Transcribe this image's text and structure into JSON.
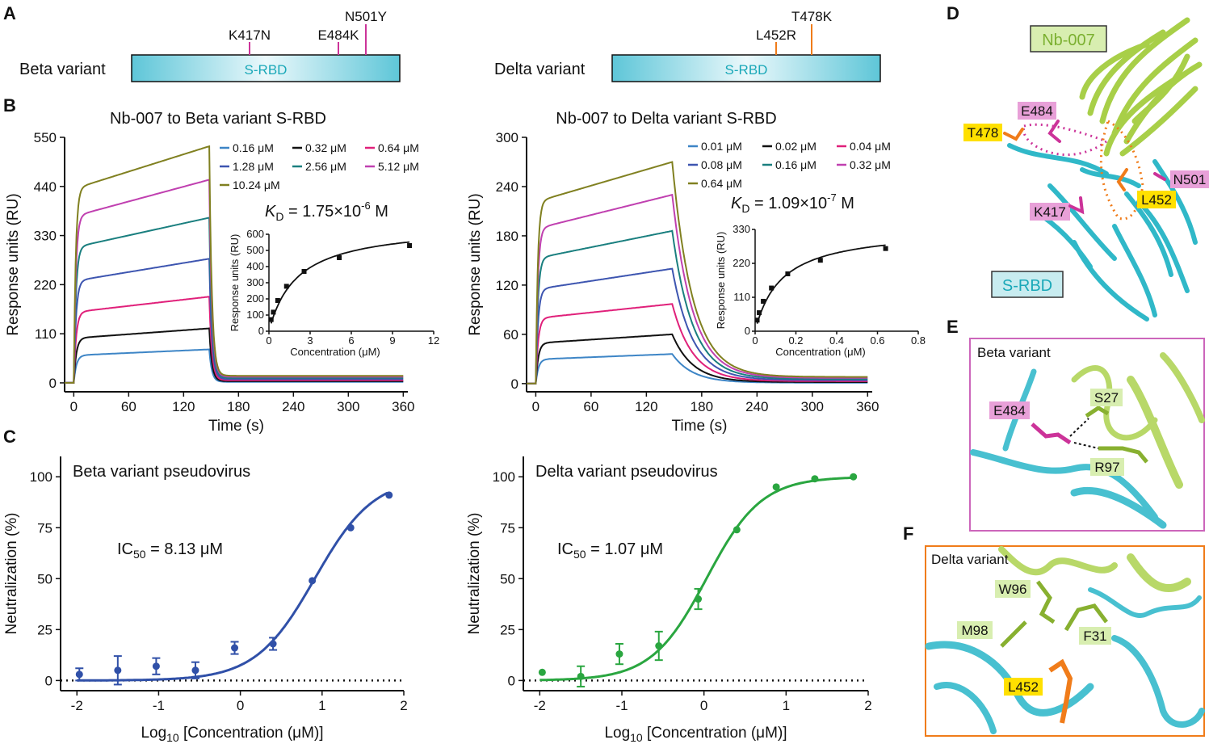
{
  "panel_labels": [
    "A",
    "B",
    "C",
    "D",
    "E",
    "F"
  ],
  "panelA": [
    {
      "name": "Beta variant",
      "domain": "S-RBD",
      "mutations": [
        "K417N",
        "E484K",
        "N501Y"
      ],
      "color": "#cc3399"
    },
    {
      "name": "Delta variant",
      "domain": "S-RBD",
      "mutations": [
        "L452R",
        "T478K"
      ],
      "color": "#f07c1a"
    }
  ],
  "chart_data": [
    {
      "id": "spr_beta",
      "type": "line",
      "title": "Nb-007 to Beta variant S-RBD",
      "xlabel": "Time (s)",
      "ylabel": "Response units (RU)",
      "xticks": [
        "0",
        "60",
        "120",
        "180",
        "240",
        "300",
        "360"
      ],
      "yticks": [
        "0",
        "110",
        "220",
        "330",
        "440",
        "550"
      ],
      "xlim": [
        -10,
        365
      ],
      "ylim": [
        -20,
        550
      ],
      "assoc_end": 148,
      "series": [
        {
          "name": "0.16 μM",
          "plateau": 75,
          "color": "#3d85c6"
        },
        {
          "name": "0.32 μM",
          "plateau": 122,
          "color": "#111111"
        },
        {
          "name": "0.64 μM",
          "plateau": 193,
          "color": "#e0207a"
        },
        {
          "name": "1.28 μM",
          "plateau": 278,
          "color": "#3d55b0"
        },
        {
          "name": "2.56 μM",
          "plateau": 370,
          "color": "#1a7f7f"
        },
        {
          "name": "5.12 μM",
          "plateau": 455,
          "color": "#c040b0"
        },
        {
          "name": "10.24 μM",
          "plateau": 530,
          "color": "#808020"
        }
      ],
      "kd_text": "K",
      "kd_sub": "D",
      "kd_value": " = 1.75×10",
      "kd_exp": "-6",
      "kd_unit": " M",
      "inset": {
        "xlabel": "Concentration (μM)",
        "ylabel": "Response units (RU)",
        "xticks": [
          "0",
          "3",
          "6",
          "9",
          "12"
        ],
        "yticks": [
          "0",
          "100",
          "200",
          "300",
          "400",
          "500",
          "600"
        ],
        "xlim": [
          0,
          12
        ],
        "ylim": [
          0,
          600
        ],
        "x": [
          0.16,
          0.32,
          0.64,
          1.28,
          2.56,
          5.12,
          10.24
        ],
        "y": [
          72,
          118,
          190,
          278,
          370,
          455,
          530
        ]
      }
    },
    {
      "id": "spr_delta",
      "type": "line",
      "title": "Nb-007 to Delta variant S-RBD",
      "xlabel": "Time (s)",
      "ylabel": "Response units (RU)",
      "xticks": [
        "0",
        "60",
        "120",
        "180",
        "240",
        "300",
        "360"
      ],
      "yticks": [
        "0",
        "60",
        "120",
        "180",
        "240",
        "300"
      ],
      "xlim": [
        -10,
        365
      ],
      "ylim": [
        -10,
        300
      ],
      "assoc_end": 148,
      "series": [
        {
          "name": "0.01 μM",
          "plateau": 36,
          "color": "#3d85c6"
        },
        {
          "name": "0.02 μM",
          "plateau": 60,
          "color": "#111111"
        },
        {
          "name": "0.04 μM",
          "plateau": 97,
          "color": "#e0207a"
        },
        {
          "name": "0.08 μM",
          "plateau": 140,
          "color": "#3d55b0"
        },
        {
          "name": "0.16 μM",
          "plateau": 186,
          "color": "#1a7f7f"
        },
        {
          "name": "0.32 μM",
          "plateau": 230,
          "color": "#c040b0"
        },
        {
          "name": "0.64 μM",
          "plateau": 270,
          "color": "#808020"
        }
      ],
      "kd_text": "K",
      "kd_sub": "D",
      "kd_value": " = 1.09×10",
      "kd_exp": "-7",
      "kd_unit": " M",
      "inset": {
        "xlabel": "Concentration (μM)",
        "ylabel": "Response units (RU)",
        "xticks": [
          "0",
          "0.2",
          "0.4",
          "0.6",
          "0.8"
        ],
        "yticks": [
          "0",
          "110",
          "220",
          "330"
        ],
        "xlim": [
          0,
          0.8
        ],
        "ylim": [
          0,
          330
        ],
        "x": [
          0.01,
          0.02,
          0.04,
          0.08,
          0.16,
          0.32,
          0.64
        ],
        "y": [
          36,
          60,
          97,
          140,
          186,
          230,
          268
        ]
      }
    },
    {
      "id": "neut_beta",
      "type": "scatter",
      "title": "Beta variant pseudovirus",
      "xlabel": "Log10 [Concentration (μM)]",
      "ylabel": "Neutralization (%)",
      "xticks": [
        "-2",
        "-1",
        "0",
        "1",
        "2"
      ],
      "yticks": [
        "0",
        "25",
        "50",
        "75",
        "100"
      ],
      "xlim": [
        -2.2,
        2
      ],
      "ylim": [
        -5,
        110
      ],
      "color": "#3050a8",
      "x": [
        -1.97,
        -1.5,
        -1.03,
        -0.55,
        -0.07,
        0.4,
        0.88,
        1.35,
        1.82
      ],
      "y": [
        3,
        5,
        7,
        5,
        16,
        18,
        49,
        75,
        91
      ],
      "err": [
        3,
        7,
        4,
        4,
        3,
        3,
        0,
        0,
        0
      ],
      "ic50_label": "IC",
      "ic50_sub": "50",
      "ic50_value": " = 8.13 μM",
      "logIC50": 0.91,
      "hill": 1.2
    },
    {
      "id": "neut_delta",
      "type": "scatter",
      "title": "Delta variant pseudovirus",
      "xlabel": "Log10 [Concentration (μM)]",
      "ylabel": "Neutralization (%)",
      "xticks": [
        "-2",
        "-1",
        "0",
        "1",
        "2"
      ],
      "yticks": [
        "0",
        "25",
        "50",
        "75",
        "100"
      ],
      "xlim": [
        -2.2,
        2
      ],
      "ylim": [
        -5,
        110
      ],
      "color": "#2aa640",
      "x": [
        -1.97,
        -1.5,
        -1.03,
        -0.55,
        -0.07,
        0.4,
        0.88,
        1.35,
        1.82
      ],
      "y": [
        4,
        2,
        13,
        17,
        40,
        74,
        95,
        99,
        100
      ],
      "err": [
        0,
        5,
        5,
        7,
        5,
        0,
        0,
        0,
        0
      ],
      "ic50_label": "IC",
      "ic50_sub": "50",
      "ic50_value": " = 1.07 μM",
      "logIC50": 0.03,
      "hill": 1.3
    }
  ],
  "structures": {
    "D": {
      "nb_label": "Nb-007",
      "rbd_label": "S-RBD",
      "residues": [
        "E484",
        "T478",
        "N501",
        "L452",
        "K417"
      ]
    },
    "E": {
      "title": "Beta variant",
      "residues": [
        "E484",
        "S27",
        "R97"
      ]
    },
    "F": {
      "title": "Delta variant",
      "residues": [
        "W96",
        "M98",
        "F31",
        "L452"
      ]
    }
  },
  "colors": {
    "nb": "#a8cf48",
    "rbd": "#30b8c8",
    "magenta": "#cc3399",
    "orange": "#f07c1a",
    "labelMag": "#e8a0d8",
    "labelOr": "#ffe000",
    "labelNb": "#d8eeb0",
    "labelRbd": "#c8ecf0"
  }
}
